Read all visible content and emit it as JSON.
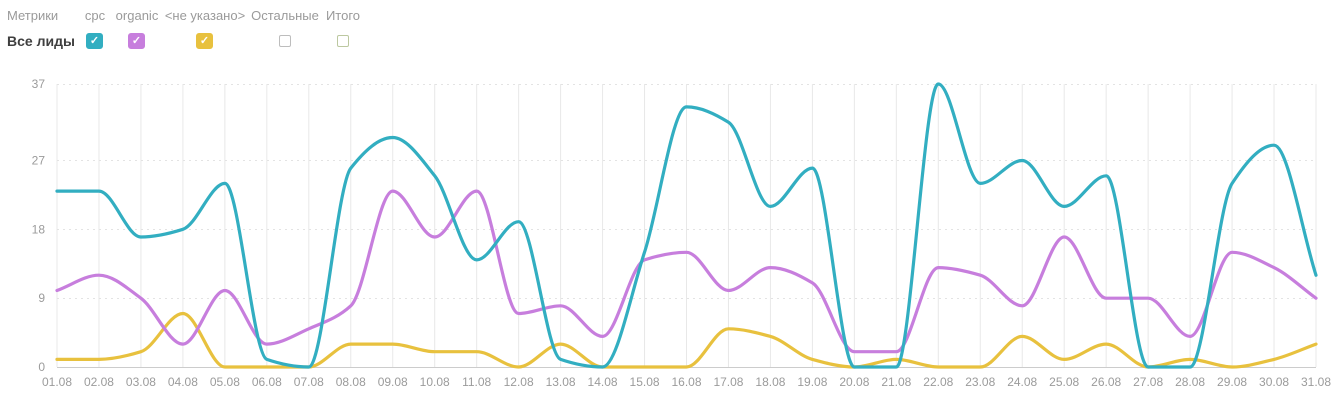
{
  "header": {
    "metrics_label": "Метрики",
    "row_label": "Все лиды",
    "columns": [
      {
        "label": "cpc",
        "checked": true,
        "color": "#32AEC1"
      },
      {
        "label": "organic",
        "checked": true,
        "color": "#C77EDD"
      },
      {
        "label": "<не указано>",
        "checked": true,
        "color": "#E8C13E"
      },
      {
        "label": "Остальные",
        "checked": false,
        "border_color": "#BDBDBD"
      },
      {
        "label": "Итого",
        "checked": false,
        "border_color": "#BCC8A0"
      }
    ],
    "check_glyph": "✓"
  },
  "chart_data": {
    "type": "line",
    "title": "",
    "xlabel": "",
    "ylabel": "",
    "x": [
      "01.08",
      "02.08",
      "03.08",
      "04.08",
      "05.08",
      "06.08",
      "07.08",
      "08.08",
      "09.08",
      "10.08",
      "11.08",
      "12.08",
      "13.08",
      "14.08",
      "15.08",
      "16.08",
      "17.08",
      "18.08",
      "19.08",
      "20.08",
      "21.08",
      "22.08",
      "23.08",
      "24.08",
      "25.08",
      "26.08",
      "27.08",
      "28.08",
      "29.08",
      "30.08",
      "31.08"
    ],
    "series": [
      {
        "name": "cpc",
        "color": "#32AEC1",
        "values": [
          23,
          23,
          17,
          18,
          24,
          1,
          0,
          26,
          30,
          25,
          14,
          19,
          1,
          0,
          15,
          34,
          32,
          21,
          26,
          0,
          0,
          37,
          24,
          27,
          21,
          25,
          0,
          0,
          24,
          29,
          12
        ]
      },
      {
        "name": "organic",
        "color": "#C77EDD",
        "values": [
          10,
          12,
          9,
          3,
          10,
          3,
          5,
          8,
          23,
          17,
          23,
          7,
          8,
          4,
          14,
          15,
          10,
          13,
          11,
          2,
          2,
          13,
          12,
          8,
          17,
          9,
          9,
          4,
          15,
          13,
          9
        ]
      },
      {
        "name": "<не указано>",
        "color": "#E8C13E",
        "values": [
          1,
          1,
          2,
          7,
          0,
          0,
          0,
          3,
          3,
          2,
          2,
          0,
          3,
          0,
          0,
          0,
          5,
          4,
          1,
          0,
          1,
          0,
          0,
          4,
          1,
          3,
          0,
          1,
          0,
          1,
          3
        ]
      }
    ],
    "ylim": [
      0,
      37
    ],
    "yticks": [
      0,
      9,
      18,
      27,
      37
    ],
    "grid": {
      "vertical": "solid",
      "horizontal": "dashed"
    },
    "legend_position": "top",
    "axis_label_color": "#9B9B9B",
    "gridline_color": "#E8E8E8",
    "baseline_color": "#CCCCCC"
  }
}
